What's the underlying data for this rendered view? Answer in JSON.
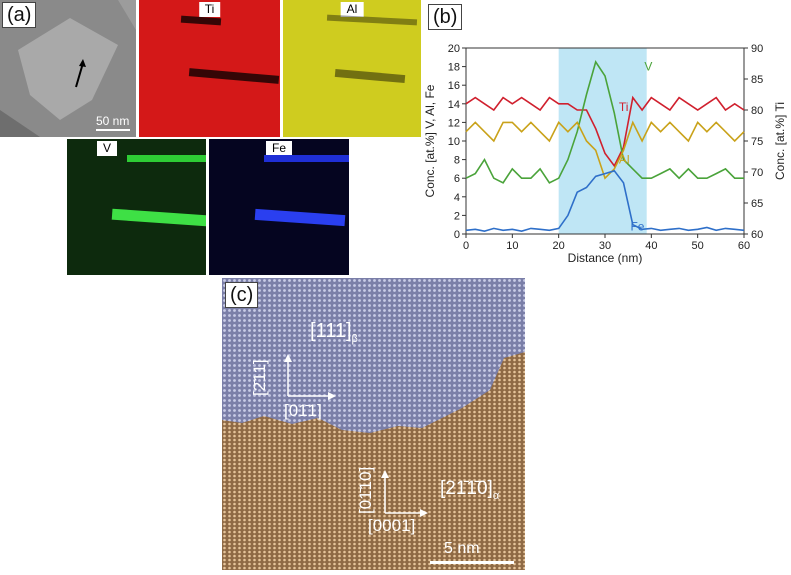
{
  "panel_a": {
    "label": "(a)",
    "scale_bar": "50 nm",
    "maps": [
      {
        "element": "Ti",
        "color": "#d61a1a"
      },
      {
        "element": "Al",
        "color": "#d4d21e"
      },
      {
        "element": "V",
        "color": "#29c42a"
      },
      {
        "element": "Fe",
        "color": "#2430e8"
      }
    ]
  },
  "panel_b": {
    "label": "(b)",
    "chart_data": {
      "type": "line",
      "xlabel": "Distance (nm)",
      "ylabel_left": "Conc. [at.%] V, Al, Fe",
      "ylabel_right": "Conc. [at.%] Ti",
      "xlim": [
        0,
        60
      ],
      "ylim_left": [
        0,
        20
      ],
      "ylim_right": [
        60,
        90
      ],
      "x_ticks": [
        0,
        10,
        20,
        30,
        40,
        50,
        60
      ],
      "y_ticks_left": [
        0,
        2,
        4,
        6,
        8,
        10,
        12,
        14,
        16,
        18,
        20
      ],
      "y_ticks_right": [
        60,
        65,
        70,
        75,
        80,
        85,
        90
      ],
      "highlight_band": [
        20,
        39
      ],
      "highlight_color": "#bfe6f5",
      "grid": false,
      "series": [
        {
          "name": "Ti",
          "axis": "right",
          "color": "#d0202e",
          "x": [
            0,
            2,
            4,
            6,
            8,
            10,
            12,
            14,
            16,
            18,
            20,
            22,
            24,
            26,
            28,
            30,
            32,
            34,
            36,
            38,
            40,
            42,
            44,
            46,
            48,
            50,
            52,
            54,
            56,
            58,
            60
          ],
          "y": [
            81,
            82,
            81,
            80,
            82,
            81,
            82,
            81,
            80,
            82,
            81,
            81,
            80,
            80,
            77,
            73,
            71,
            74,
            82,
            80,
            82,
            81,
            80,
            82,
            81,
            80,
            81,
            82,
            80,
            81,
            80
          ]
        },
        {
          "name": "V",
          "axis": "left",
          "color": "#4aa33a",
          "x": [
            0,
            2,
            4,
            6,
            8,
            10,
            12,
            14,
            16,
            18,
            20,
            22,
            24,
            26,
            28,
            30,
            32,
            34,
            36,
            38,
            40,
            42,
            44,
            46,
            48,
            50,
            52,
            54,
            56,
            58,
            60
          ],
          "y": [
            6,
            6.5,
            8,
            6,
            5.5,
            7,
            6,
            6,
            7,
            5.5,
            6,
            8,
            11,
            15,
            18.5,
            17,
            13,
            8,
            7,
            6,
            6,
            6.5,
            7,
            6,
            7,
            6,
            6,
            6.5,
            7,
            6,
            6
          ]
        },
        {
          "name": "Al",
          "axis": "left",
          "color": "#c9a21a",
          "x": [
            0,
            2,
            4,
            6,
            8,
            10,
            12,
            14,
            16,
            18,
            20,
            22,
            24,
            26,
            28,
            30,
            32,
            34,
            36,
            38,
            40,
            42,
            44,
            46,
            48,
            50,
            52,
            54,
            56,
            58,
            60
          ],
          "y": [
            11,
            12,
            11,
            10,
            12,
            12,
            11,
            12,
            11,
            10,
            12,
            11,
            12,
            10,
            9,
            6,
            7,
            9,
            12,
            10,
            12,
            11,
            12,
            11,
            10,
            12,
            11,
            12,
            11,
            10,
            11
          ]
        },
        {
          "name": "Fe",
          "axis": "left",
          "color": "#2e6fc9",
          "x": [
            0,
            2,
            4,
            6,
            8,
            10,
            12,
            14,
            16,
            18,
            20,
            22,
            24,
            26,
            28,
            30,
            32,
            34,
            36,
            38,
            40,
            42,
            44,
            46,
            48,
            50,
            52,
            54,
            56,
            58,
            60
          ],
          "y": [
            0.4,
            0.5,
            0.3,
            0.6,
            0.4,
            0.5,
            0.3,
            0.6,
            0.5,
            0.4,
            0.6,
            2,
            4.5,
            5,
            6.2,
            6.5,
            6.8,
            5.5,
            1,
            0.5,
            0.6,
            0.4,
            0.5,
            0.6,
            0.4,
            0.5,
            0.7,
            0.4,
            0.6,
            0.5,
            0.4
          ]
        }
      ]
    }
  },
  "panel_c": {
    "label": "(c)",
    "scale_bar": "5 nm",
    "beta_zone": "[111]",
    "beta_zone_sub": "β",
    "beta_up": "[2̄11]",
    "beta_right": "[01̄1]",
    "alpha_zone": "[21̄1̄0]",
    "alpha_zone_sub": "α",
    "alpha_up": "[01̄10]",
    "alpha_right": "[0001]"
  }
}
